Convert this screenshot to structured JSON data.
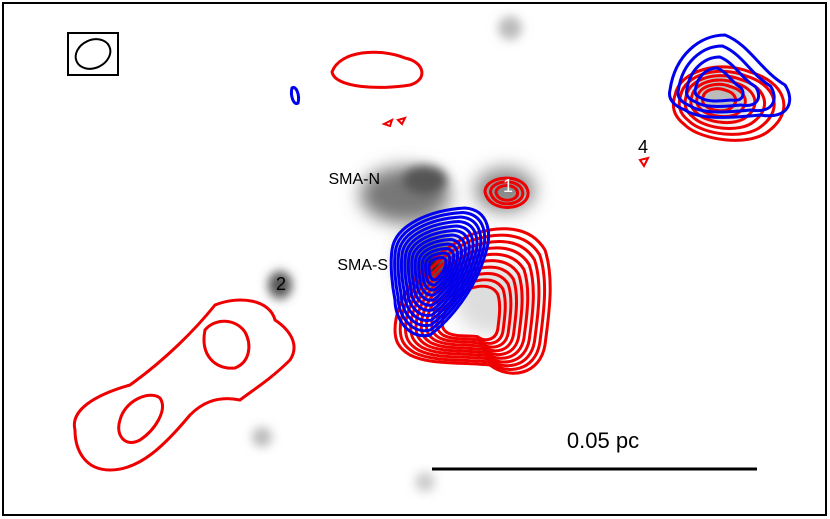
{
  "labels": {
    "sma_n": "SMA-N",
    "sma_s": "SMA-S",
    "source_1": "1",
    "source_2": "2",
    "source_4": "4"
  },
  "scale_bar": {
    "label": "0.05 pc"
  }
}
